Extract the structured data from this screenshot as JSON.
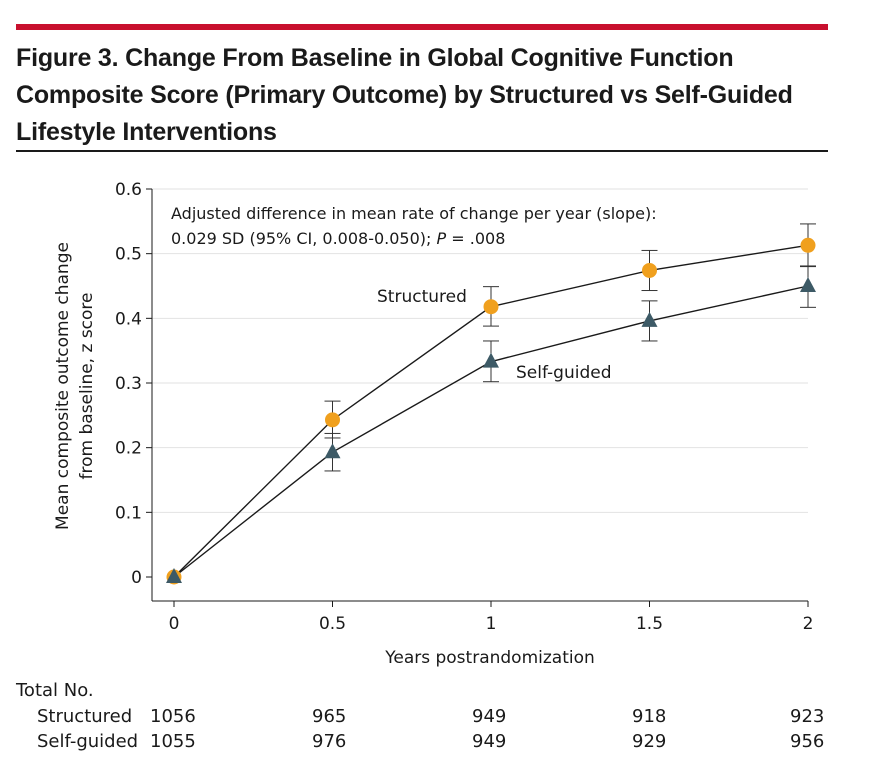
{
  "figure": {
    "title_line1": "Figure 3. Change From Baseline in Global Cognitive Function",
    "title_line2": "Composite Score (Primary Outcome) by Structured vs Self-Guided",
    "title_line3": "Lifestyle Interventions"
  },
  "chart_data": {
    "type": "line",
    "xlabel": "Years postrandomization",
    "ylabel_line1": "Mean composite outcome change",
    "ylabel_line2": "from baseline, z score",
    "xlim": [
      0,
      2
    ],
    "ylim": [
      0,
      0.6
    ],
    "x_ticks": [
      "0",
      "0.5",
      "1",
      "1.5",
      "2"
    ],
    "y_ticks": [
      "0",
      "0.1",
      "0.2",
      "0.3",
      "0.4",
      "0.5",
      "0.6"
    ],
    "annotation_line1": "Adjusted difference in mean rate of change per year (slope):",
    "annotation_line2_prefix": "0.029 SD (95% CI, 0.008-0.050); ",
    "annotation_p_label": "P",
    "annotation_p_value": " = .008",
    "grid": "horizontal",
    "series": [
      {
        "name": "Structured",
        "marker": "circle",
        "color": "#f0a01e",
        "x": [
          0,
          0.5,
          1,
          1.5,
          2
        ],
        "y": [
          0,
          0.243,
          0.418,
          0.474,
          0.513
        ],
        "ci_low": [
          0,
          0.215,
          0.388,
          0.443,
          0.481
        ],
        "ci_high": [
          0,
          0.272,
          0.449,
          0.505,
          0.546
        ]
      },
      {
        "name": "Self-guided",
        "marker": "triangle",
        "color": "#3d5a66",
        "x": [
          0,
          0.5,
          1,
          1.5,
          2
        ],
        "y": [
          0,
          0.193,
          0.333,
          0.396,
          0.45
        ],
        "ci_low": [
          0,
          0.164,
          0.302,
          0.365,
          0.417
        ],
        "ci_high": [
          0,
          0.222,
          0.365,
          0.427,
          0.48
        ]
      }
    ]
  },
  "table": {
    "header": "Total No.",
    "rows": [
      {
        "label": "Structured",
        "values": [
          "1056",
          "965",
          "949",
          "918",
          "923"
        ]
      },
      {
        "label": "Self-guided",
        "values": [
          "1055",
          "976",
          "949",
          "929",
          "956"
        ]
      }
    ]
  }
}
